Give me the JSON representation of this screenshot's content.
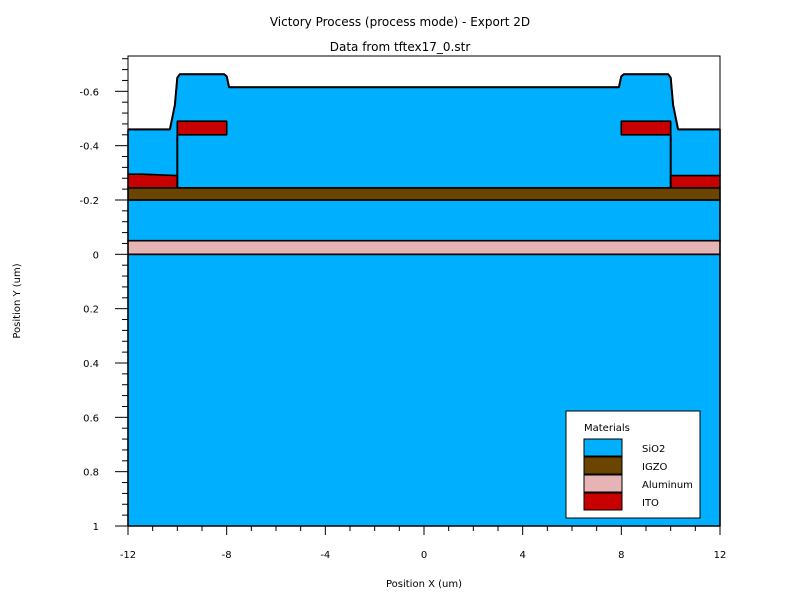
{
  "chart_data": {
    "type": "area",
    "title": "Victory Process  (process mode) - Export 2D",
    "subtitle": "Data from tftex17_0.str",
    "xlabel": "Position X (um)",
    "ylabel": "Position Y (um)",
    "xlim": [
      -12,
      12
    ],
    "ylim": [
      -0.73,
      1.0
    ],
    "y_inverted": true,
    "x_ticks": [
      -12,
      -8,
      -4,
      0,
      4,
      8,
      12
    ],
    "y_ticks": [
      -0.6,
      -0.4,
      -0.2,
      0,
      0.2,
      0.4,
      0.6,
      0.8,
      1
    ],
    "legend": {
      "title": "Materials",
      "placement": "bottom-right",
      "entries": [
        {
          "name": "SiO2",
          "color": "#00b0ff"
        },
        {
          "name": "IGZO",
          "color": "#6b4500"
        },
        {
          "name": "Aluminum",
          "color": "#e6b4b4"
        },
        {
          "name": "ITO",
          "color": "#c80000"
        }
      ]
    },
    "regions": [
      {
        "material": "SiO2",
        "name": "substrate-oxide",
        "points": [
          [
            -12,
            1.0
          ],
          [
            12,
            1.0
          ],
          [
            12,
            0.0
          ],
          [
            -12,
            0.0
          ]
        ]
      },
      {
        "material": "Aluminum",
        "name": "aluminum-layer",
        "points": [
          [
            -12,
            0.0
          ],
          [
            12,
            0.0
          ],
          [
            12,
            -0.05
          ],
          [
            -12,
            -0.05
          ]
        ]
      },
      {
        "material": "SiO2",
        "name": "gate-oxide",
        "points": [
          [
            -12,
            -0.05
          ],
          [
            12,
            -0.05
          ],
          [
            12,
            -0.2
          ],
          [
            -12,
            -0.2
          ]
        ]
      },
      {
        "material": "IGZO",
        "name": "igzo-channel",
        "points": [
          [
            -12,
            -0.2
          ],
          [
            12,
            -0.2
          ],
          [
            12,
            -0.245
          ],
          [
            -12,
            -0.245
          ]
        ]
      },
      {
        "material": "ITO",
        "name": "ito-left-contact",
        "points": [
          [
            -12,
            -0.245
          ],
          [
            -10,
            -0.245
          ],
          [
            -10,
            -0.29
          ],
          [
            -11.4,
            -0.295
          ],
          [
            -12,
            -0.295
          ]
        ]
      },
      {
        "material": "ITO",
        "name": "ito-right-contact",
        "points": [
          [
            10,
            -0.245
          ],
          [
            12,
            -0.245
          ],
          [
            12,
            -0.29
          ],
          [
            10,
            -0.29
          ]
        ]
      },
      {
        "material": "SiO2",
        "name": "passivation-oxide",
        "points": [
          [
            -12,
            -0.295
          ],
          [
            -11.4,
            -0.295
          ],
          [
            -10,
            -0.29
          ],
          [
            -10,
            -0.245
          ],
          [
            10,
            -0.245
          ],
          [
            10,
            -0.29
          ],
          [
            12,
            -0.29
          ],
          [
            12,
            -0.46
          ],
          [
            10.3,
            -0.46
          ],
          [
            10.1,
            -0.55
          ],
          [
            10.0,
            -0.65
          ],
          [
            9.9,
            -0.663
          ],
          [
            8.1,
            -0.663
          ],
          [
            8.0,
            -0.655
          ],
          [
            7.9,
            -0.615
          ],
          [
            -7.9,
            -0.615
          ],
          [
            -8.0,
            -0.655
          ],
          [
            -8.1,
            -0.663
          ],
          [
            -9.9,
            -0.663
          ],
          [
            -10.0,
            -0.65
          ],
          [
            -10.1,
            -0.55
          ],
          [
            -10.3,
            -0.46
          ],
          [
            -12,
            -0.46
          ]
        ]
      },
      {
        "material": "ITO",
        "name": "ito-left-electrode",
        "points": [
          [
            -10,
            -0.44
          ],
          [
            -8,
            -0.44
          ],
          [
            -8,
            -0.49
          ],
          [
            -10,
            -0.49
          ]
        ]
      },
      {
        "material": "ITO",
        "name": "ito-right-electrode",
        "points": [
          [
            8,
            -0.44
          ],
          [
            10,
            -0.44
          ],
          [
            10,
            -0.49
          ],
          [
            8,
            -0.49
          ]
        ]
      }
    ],
    "boundaries": [
      {
        "name": "passivation-surface",
        "points": [
          [
            -12,
            -0.46
          ],
          [
            -10.3,
            -0.46
          ],
          [
            -10.1,
            -0.55
          ],
          [
            -10.0,
            -0.65
          ],
          [
            -9.9,
            -0.663
          ],
          [
            -8.1,
            -0.663
          ],
          [
            -8.0,
            -0.655
          ],
          [
            -7.9,
            -0.615
          ],
          [
            7.9,
            -0.615
          ],
          [
            8.0,
            -0.655
          ],
          [
            8.1,
            -0.663
          ],
          [
            9.9,
            -0.663
          ],
          [
            10.0,
            -0.65
          ],
          [
            10.1,
            -0.55
          ],
          [
            10.3,
            -0.46
          ],
          [
            12,
            -0.46
          ]
        ]
      },
      {
        "name": "left-via-wall",
        "points": [
          [
            -10,
            -0.245
          ],
          [
            -10,
            -0.44
          ]
        ]
      },
      {
        "name": "right-via-wall",
        "points": [
          [
            10,
            -0.245
          ],
          [
            10,
            -0.44
          ]
        ]
      }
    ]
  }
}
